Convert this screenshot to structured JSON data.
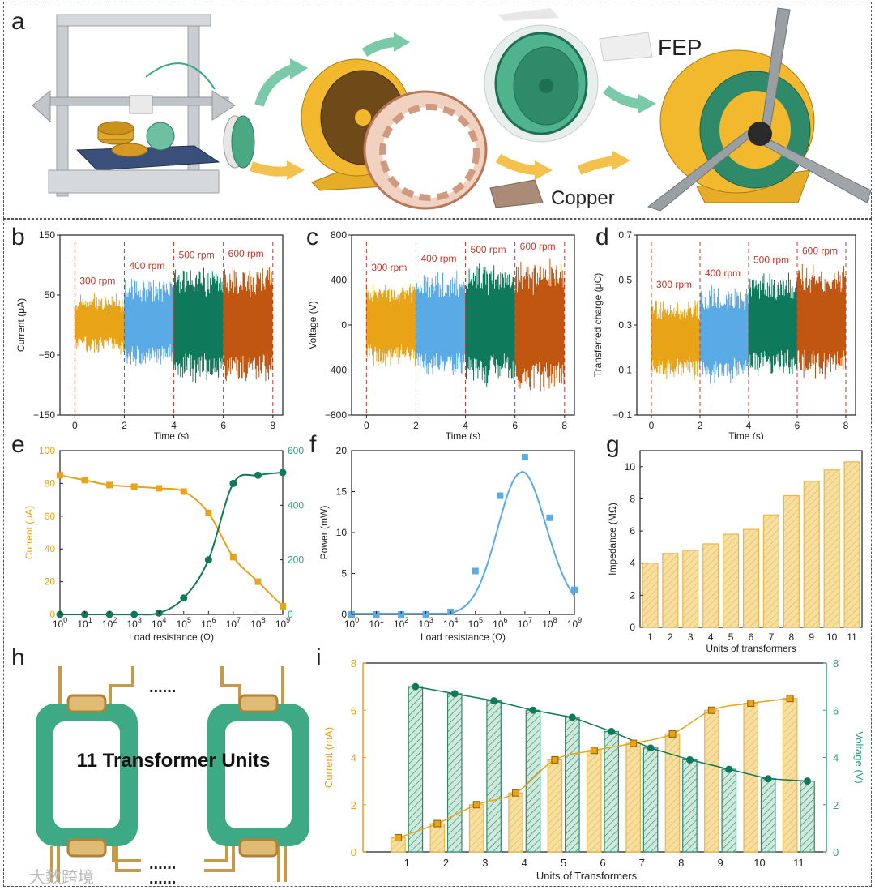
{
  "panel_labels": {
    "a": "a",
    "b": "b",
    "c": "c",
    "d": "d",
    "e": "e",
    "f": "f",
    "g": "g",
    "h": "h",
    "i": "i"
  },
  "panel_a": {
    "fep_label": "FEP",
    "copper_label": "Copper"
  },
  "panel_h": {
    "title": "11 Transformer Units",
    "dots": "......"
  },
  "watermark": "大数跨境",
  "colors": {
    "orange": "#e8a317",
    "blue": "#5aaae6",
    "green": "#0e7a5b",
    "rust": "#c0560f",
    "red_dash": "#c0392b",
    "green_axis": "#2e9f82",
    "bar_fill": "#f6dfa0",
    "bar_stroke": "#e8b64a"
  },
  "chart_data": [
    {
      "id": "b",
      "type": "line",
      "ylabel": "Current (μA)",
      "xlabel": "Time (s)",
      "xlim": [
        -0.6,
        8.4
      ],
      "ylim": [
        -150,
        150
      ],
      "xticks": [
        "0",
        "2",
        "4",
        "6",
        "8"
      ],
      "yticks": [
        "150",
        "50",
        "−50",
        "−150"
      ],
      "ytick_values": [
        150,
        50,
        -50,
        -150
      ],
      "segments": [
        {
          "label": "300 rpm",
          "x": [
            0,
            2
          ],
          "amp_top": 55,
          "amp_bot": -50,
          "color": "#e8a317"
        },
        {
          "label": "400 rpm",
          "x": [
            2,
            4
          ],
          "amp_top": 80,
          "amp_bot": -75,
          "color": "#5aaae6"
        },
        {
          "label": "500 rpm",
          "x": [
            4,
            6
          ],
          "amp_top": 98,
          "amp_bot": -98,
          "color": "#0e7a5b"
        },
        {
          "label": "600 rpm",
          "x": [
            6,
            8
          ],
          "amp_top": 100,
          "amp_bot": -100,
          "color": "#c0560f"
        }
      ]
    },
    {
      "id": "c",
      "type": "line",
      "ylabel": "Voltage (V)",
      "xlabel": "Time (s)",
      "xlim": [
        -0.6,
        8.4
      ],
      "ylim": [
        -800,
        800
      ],
      "xticks": [
        "0",
        "2",
        "4",
        "6",
        "8"
      ],
      "yticks": [
        "800",
        "400",
        "0",
        "−400",
        "−800"
      ],
      "ytick_values": [
        800,
        400,
        0,
        -400,
        -800
      ],
      "segments": [
        {
          "label": "300 rpm",
          "x": [
            0,
            2
          ],
          "amp_top": 410,
          "amp_bot": -390,
          "color": "#e8a317"
        },
        {
          "label": "400 rpm",
          "x": [
            2,
            4
          ],
          "amp_top": 490,
          "amp_bot": -480,
          "color": "#5aaae6"
        },
        {
          "label": "500 rpm",
          "x": [
            4,
            6
          ],
          "amp_top": 570,
          "amp_bot": -560,
          "color": "#0e7a5b"
        },
        {
          "label": "600 rpm",
          "x": [
            6,
            8
          ],
          "amp_top": 600,
          "amp_bot": -630,
          "color": "#c0560f"
        }
      ]
    },
    {
      "id": "d",
      "type": "line",
      "ylabel": "Transferred charge (μC)",
      "xlabel": "Time (s)",
      "xlim": [
        -0.6,
        8.4
      ],
      "ylim": [
        -0.1,
        0.7
      ],
      "xticks": [
        "0",
        "2",
        "4",
        "6",
        "8"
      ],
      "yticks": [
        "0.7",
        "0.5",
        "0.3",
        "0.1",
        "−0.1"
      ],
      "ytick_values": [
        0.7,
        0.5,
        0.3,
        0.1,
        -0.1
      ],
      "segments": [
        {
          "label": "300 rpm",
          "x": [
            0,
            2
          ],
          "amp_top": 0.43,
          "amp_bot": 0.05,
          "color": "#e8a317"
        },
        {
          "label": "400 rpm",
          "x": [
            2,
            4
          ],
          "amp_top": 0.48,
          "amp_bot": 0.03,
          "color": "#5aaae6"
        },
        {
          "label": "500 rpm",
          "x": [
            4,
            6
          ],
          "amp_top": 0.54,
          "amp_bot": 0.06,
          "color": "#0e7a5b"
        },
        {
          "label": "600 rpm",
          "x": [
            6,
            8
          ],
          "amp_top": 0.58,
          "amp_bot": 0.05,
          "color": "#c0560f"
        }
      ]
    },
    {
      "id": "e",
      "type": "line",
      "xlabel": "Load resistance (Ω)",
      "ylabel": "Current (μA)",
      "y2label": "Voltage (V)",
      "x": [
        0,
        1,
        2,
        3,
        4,
        5,
        6,
        7,
        8,
        9
      ],
      "xlim": [
        0,
        9
      ],
      "ylim": [
        0,
        100
      ],
      "y2lim": [
        0,
        600
      ],
      "xticks": [
        "0",
        "1",
        "2",
        "3",
        "4",
        "5",
        "6",
        "7",
        "8",
        "9"
      ],
      "yticks": [
        "0",
        "20",
        "40",
        "60",
        "80",
        "100"
      ],
      "y2ticks": [
        "0",
        "200",
        "400",
        "600"
      ],
      "series": [
        {
          "name": "Current",
          "axis": "left",
          "color": "#e8a317",
          "values": [
            85,
            82,
            79,
            78,
            77,
            75,
            62,
            35,
            20,
            5
          ]
        },
        {
          "name": "Voltage",
          "axis": "right",
          "color": "#0e7a5b",
          "values": [
            0,
            0,
            0,
            0,
            5,
            60,
            200,
            480,
            510,
            520
          ]
        }
      ]
    },
    {
      "id": "f",
      "type": "scatter",
      "xlabel": "Load resistance (Ω)",
      "ylabel": "Power (mW)",
      "x": [
        0,
        1,
        2,
        3,
        4,
        5,
        6,
        7,
        8,
        9
      ],
      "xlim": [
        0,
        9
      ],
      "ylim": [
        0,
        20
      ],
      "xticks": [
        "0",
        "1",
        "2",
        "3",
        "4",
        "5",
        "6",
        "7",
        "8",
        "9"
      ],
      "yticks": [
        "0",
        "5",
        "10",
        "15",
        "20"
      ],
      "series": [
        {
          "name": "Power",
          "color": "#5aaae6",
          "values": [
            0,
            0,
            0,
            0,
            0.3,
            5.3,
            14.5,
            19.2,
            11.8,
            3.0
          ]
        }
      ]
    },
    {
      "id": "g",
      "type": "bar",
      "xlabel": "Units of transformers",
      "ylabel": "Impedance (MΩ)",
      "ylim": [
        0,
        11
      ],
      "categories": [
        "1",
        "2",
        "3",
        "4",
        "5",
        "6",
        "7",
        "8",
        "9",
        "10",
        "11"
      ],
      "yticks": [
        "0",
        "2",
        "4",
        "6",
        "8",
        "10"
      ],
      "values": [
        4.0,
        4.6,
        4.8,
        5.2,
        5.8,
        6.1,
        7.0,
        8.2,
        9.1,
        9.8,
        10.3
      ]
    },
    {
      "id": "i",
      "type": "bar",
      "xlabel": "Units of Transformers",
      "ylabel": "Current (mA)",
      "y2label": "Voltage (V)",
      "ylim": [
        0,
        8
      ],
      "y2lim": [
        0,
        8
      ],
      "categories": [
        "1",
        "2",
        "3",
        "4",
        "5",
        "6",
        "7",
        "8",
        "9",
        "10",
        "11"
      ],
      "yticks": [
        "0",
        "2",
        "4",
        "6",
        "8"
      ],
      "y2ticks": [
        "0",
        "2",
        "4",
        "6",
        "8"
      ],
      "series": [
        {
          "name": "Current",
          "axis": "left",
          "color": "#e8a317",
          "values": [
            0.6,
            1.2,
            2.0,
            2.5,
            3.9,
            4.3,
            4.6,
            5.0,
            6.0,
            6.3,
            6.5
          ]
        },
        {
          "name": "Voltage",
          "axis": "right",
          "color": "#0e7a5b",
          "values": [
            7.0,
            6.7,
            6.4,
            6.0,
            5.7,
            5.1,
            4.4,
            3.9,
            3.5,
            3.1,
            3.0
          ]
        }
      ]
    }
  ]
}
